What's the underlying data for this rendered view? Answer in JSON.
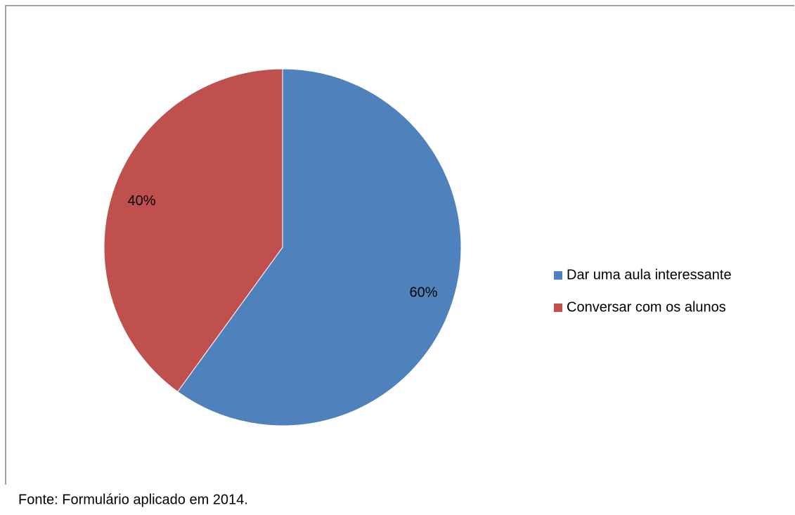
{
  "chart_data": {
    "type": "pie",
    "categories": [
      "Dar uma aula interessante",
      "Conversar com os alunos"
    ],
    "values": [
      60,
      40
    ],
    "value_labels": [
      "60%",
      "40%"
    ],
    "colors": [
      "#4f81bd",
      "#c0504d"
    ],
    "legend": "right",
    "source": "Fonte: Formulário aplicado em 2014."
  }
}
